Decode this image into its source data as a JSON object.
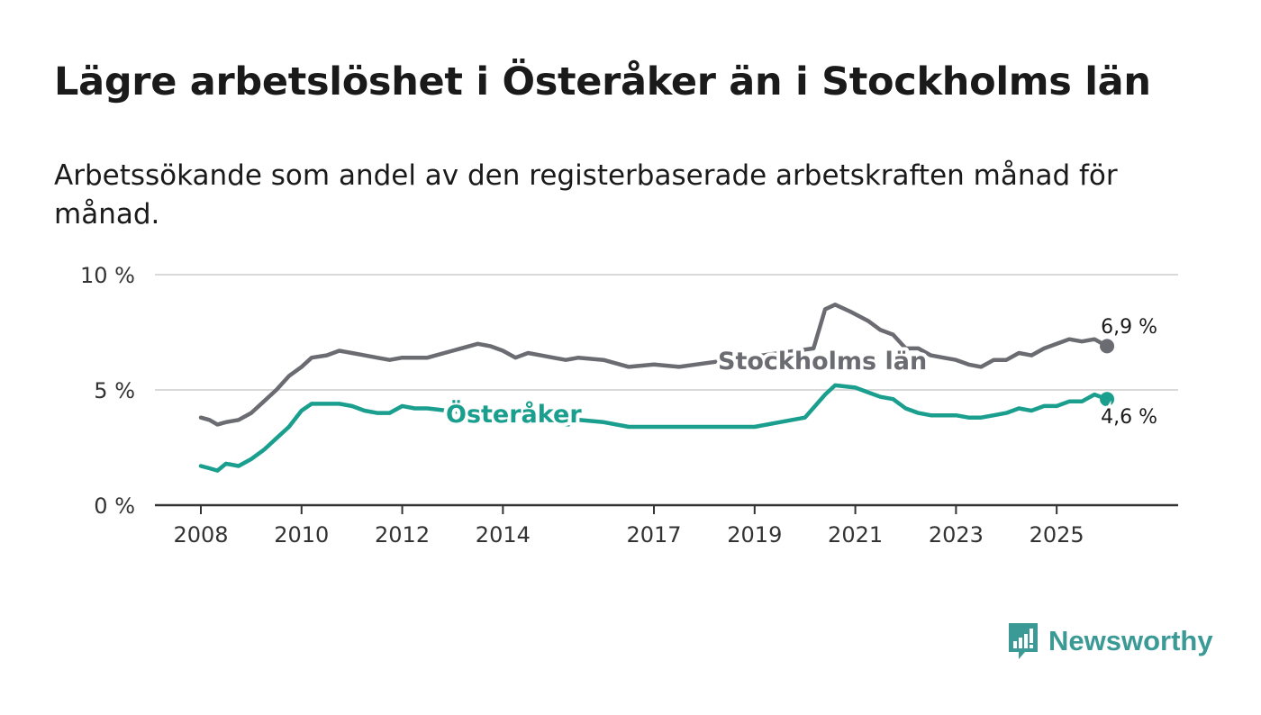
{
  "title": "Lägre arbetslöshet i Österåker än i Stockholms län",
  "subtitle": "Arbetssökande som andel av den registerbaserade arbetskraften månad för månad.",
  "brand": {
    "name": "Newsworthy",
    "color": "#3c9a96",
    "icon": "newsworthy-logo-icon"
  },
  "chart_data": {
    "type": "line",
    "ylim": [
      0,
      10
    ],
    "yticks": [
      0,
      5,
      10
    ],
    "ytick_labels": [
      "0 %",
      "5 %",
      "10 %"
    ],
    "xlim": [
      2008,
      2026.5
    ],
    "xticks": [
      2008,
      2010,
      2012,
      2014,
      2017,
      2019,
      2021,
      2023,
      2025
    ],
    "xtick_labels": [
      "2008",
      "2010",
      "2012",
      "2014",
      "2017",
      "2019",
      "2021",
      "2023",
      "2025"
    ],
    "grid": true,
    "series": [
      {
        "name": "Stockholms län",
        "color": "#6b6b72",
        "last_label": "6,9 %",
        "points": [
          [
            2008.0,
            3.8
          ],
          [
            2008.17,
            3.7
          ],
          [
            2008.33,
            3.5
          ],
          [
            2008.5,
            3.6
          ],
          [
            2008.75,
            3.7
          ],
          [
            2009.0,
            4.0
          ],
          [
            2009.25,
            4.5
          ],
          [
            2009.5,
            5.0
          ],
          [
            2009.75,
            5.6
          ],
          [
            2010.0,
            6.0
          ],
          [
            2010.2,
            6.4
          ],
          [
            2010.5,
            6.5
          ],
          [
            2010.75,
            6.7
          ],
          [
            2011.0,
            6.6
          ],
          [
            2011.25,
            6.5
          ],
          [
            2011.5,
            6.4
          ],
          [
            2011.75,
            6.3
          ],
          [
            2012.0,
            6.4
          ],
          [
            2012.5,
            6.4
          ],
          [
            2013.0,
            6.7
          ],
          [
            2013.5,
            7.0
          ],
          [
            2013.75,
            6.9
          ],
          [
            2014.0,
            6.7
          ],
          [
            2014.25,
            6.4
          ],
          [
            2014.5,
            6.6
          ],
          [
            2014.75,
            6.5
          ],
          [
            2015.0,
            6.4
          ],
          [
            2015.25,
            6.3
          ],
          [
            2015.5,
            6.4
          ],
          [
            2016.0,
            6.3
          ],
          [
            2016.5,
            6.0
          ],
          [
            2017.0,
            6.1
          ],
          [
            2017.5,
            6.0
          ],
          [
            2017.83,
            6.1
          ],
          [
            2020.17,
            6.8
          ],
          [
            2020.4,
            8.5
          ],
          [
            2020.6,
            8.7
          ],
          [
            2020.9,
            8.4
          ],
          [
            2021.25,
            8.0
          ],
          [
            2021.5,
            7.6
          ],
          [
            2021.75,
            7.4
          ],
          [
            2022.0,
            6.8
          ],
          [
            2022.25,
            6.8
          ],
          [
            2022.5,
            6.5
          ],
          [
            2022.75,
            6.4
          ],
          [
            2023.0,
            6.3
          ],
          [
            2023.25,
            6.1
          ],
          [
            2023.5,
            6.0
          ],
          [
            2023.75,
            6.3
          ],
          [
            2024.0,
            6.3
          ],
          [
            2024.25,
            6.6
          ],
          [
            2024.5,
            6.5
          ],
          [
            2024.75,
            6.8
          ],
          [
            2025.0,
            7.0
          ],
          [
            2025.25,
            7.2
          ],
          [
            2025.5,
            7.1
          ],
          [
            2025.75,
            7.2
          ],
          [
            2026.0,
            6.9
          ]
        ]
      },
      {
        "name": "Österåker",
        "color": "#1a9e8e",
        "last_label": "4,6 %",
        "points": [
          [
            2008.0,
            1.7
          ],
          [
            2008.17,
            1.6
          ],
          [
            2008.33,
            1.5
          ],
          [
            2008.5,
            1.8
          ],
          [
            2008.75,
            1.7
          ],
          [
            2009.0,
            2.0
          ],
          [
            2009.25,
            2.4
          ],
          [
            2009.5,
            2.9
          ],
          [
            2009.75,
            3.4
          ],
          [
            2010.0,
            4.1
          ],
          [
            2010.2,
            4.4
          ],
          [
            2010.5,
            4.4
          ],
          [
            2010.75,
            4.4
          ],
          [
            2011.0,
            4.3
          ],
          [
            2011.25,
            4.1
          ],
          [
            2011.5,
            4.0
          ],
          [
            2011.75,
            4.0
          ],
          [
            2012.0,
            4.3
          ],
          [
            2012.25,
            4.2
          ],
          [
            2012.5,
            4.2
          ],
          [
            2015.3,
            3.5
          ],
          [
            2015.5,
            3.7
          ],
          [
            2016.0,
            3.6
          ],
          [
            2016.5,
            3.4
          ],
          [
            2017.0,
            3.4
          ],
          [
            2017.5,
            3.4
          ],
          [
            2018.0,
            3.4
          ],
          [
            2018.5,
            3.4
          ],
          [
            2019.0,
            3.4
          ],
          [
            2019.5,
            3.6
          ],
          [
            2020.0,
            3.8
          ],
          [
            2020.4,
            4.8
          ],
          [
            2020.6,
            5.2
          ],
          [
            2021.0,
            5.1
          ],
          [
            2021.25,
            4.9
          ],
          [
            2021.5,
            4.7
          ],
          [
            2021.75,
            4.6
          ],
          [
            2022.0,
            4.2
          ],
          [
            2022.25,
            4.0
          ],
          [
            2022.5,
            3.9
          ],
          [
            2022.75,
            3.9
          ],
          [
            2023.0,
            3.9
          ],
          [
            2023.25,
            3.8
          ],
          [
            2023.5,
            3.8
          ],
          [
            2023.75,
            3.9
          ],
          [
            2024.0,
            4.0
          ],
          [
            2024.25,
            4.2
          ],
          [
            2024.5,
            4.1
          ],
          [
            2024.75,
            4.3
          ],
          [
            2025.0,
            4.3
          ],
          [
            2025.25,
            4.5
          ],
          [
            2025.5,
            4.5
          ],
          [
            2025.75,
            4.8
          ],
          [
            2026.0,
            4.6
          ]
        ]
      }
    ]
  }
}
